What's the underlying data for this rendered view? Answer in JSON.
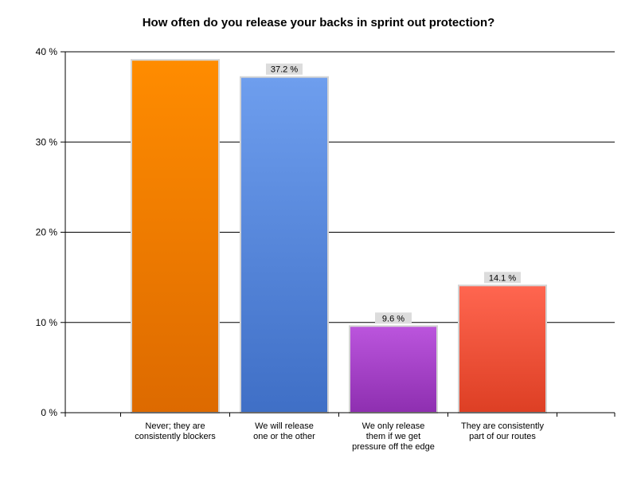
{
  "chart_data": {
    "type": "bar",
    "title": "How often do you release your backs in sprint out protection?",
    "xlabel": "",
    "ylabel": "",
    "ylim": [
      0,
      40
    ],
    "yticks": [
      0,
      10,
      20,
      30,
      40
    ],
    "ytick_labels": [
      "0 %",
      "10 %",
      "20 %",
      "30 %",
      "40 %"
    ],
    "grid": true,
    "legend": "none",
    "categories": [
      [
        "Never; they are",
        "consistently blockers"
      ],
      [
        "We will release",
        "one or the other"
      ],
      [
        "We only release",
        "them if we get",
        "pressure off the edge"
      ],
      [
        "They are consistently",
        "part of our routes"
      ]
    ],
    "values": [
      39.1,
      37.2,
      9.6,
      14.1
    ],
    "data_labels": [
      "",
      "37.2 %",
      "9.6 %",
      "14.1 %"
    ],
    "colors": [
      {
        "top": "#ff8c00",
        "bottom": "#dd6a00"
      },
      {
        "top": "#6e9eee",
        "bottom": "#3f6fc6"
      },
      {
        "top": "#bb55dd",
        "bottom": "#8e2fb0"
      },
      {
        "top": "#ff6650",
        "bottom": "#dd3f24"
      }
    ]
  }
}
